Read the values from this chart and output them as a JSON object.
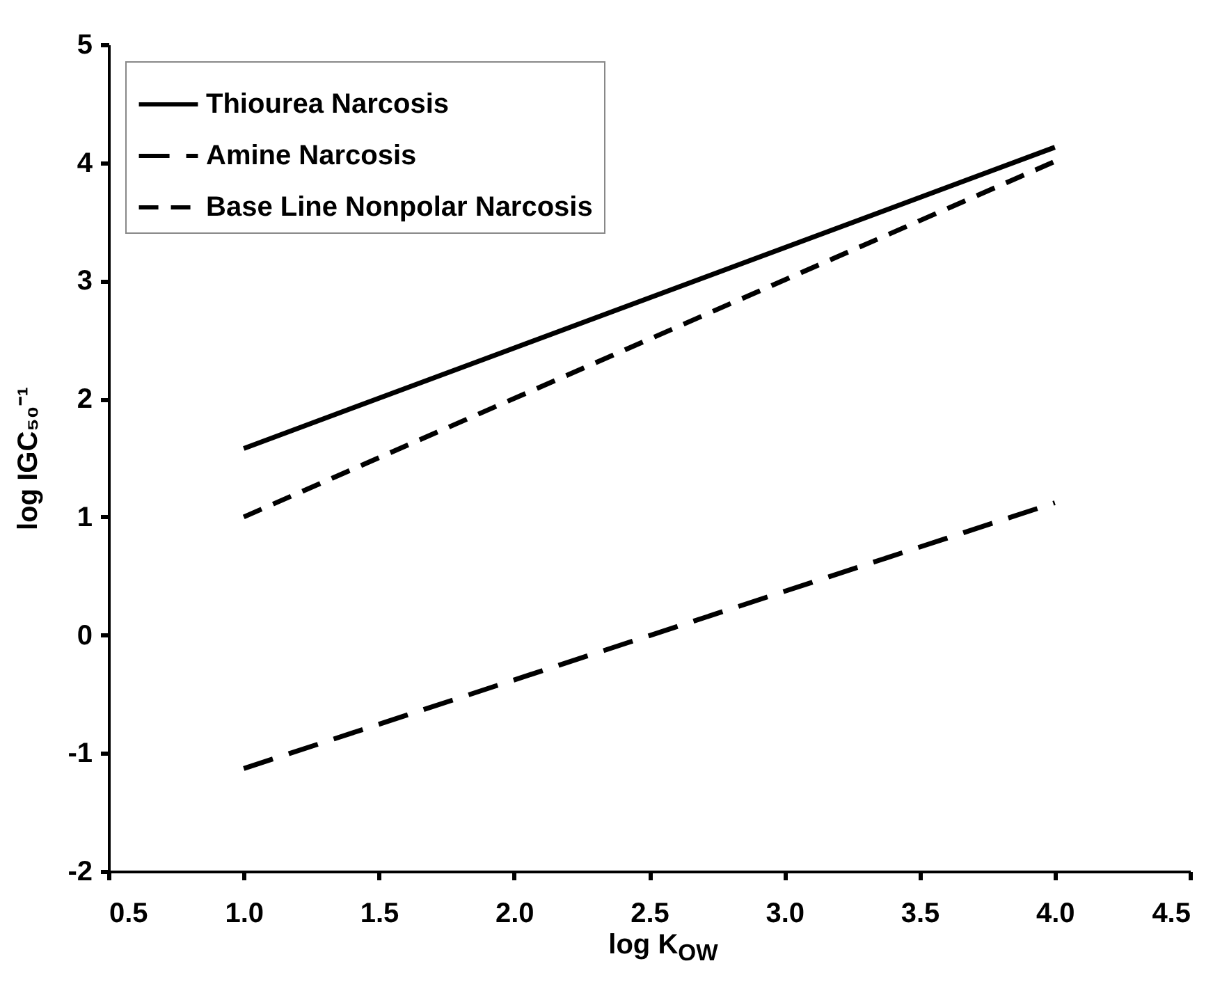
{
  "chart_data": {
    "type": "line",
    "xlabel": "log K$_{OW}$",
    "ylabel": "log IGC₅₀⁻¹",
    "x": [
      1.0,
      4.0
    ],
    "series": [
      {
        "name": "Thiourea Narcosis",
        "color": "#000000",
        "line_style": "solid",
        "values": [
          1.58,
          4.13
        ]
      },
      {
        "name": "Amine Narcosis",
        "color": "#000000",
        "line_style": "dashed",
        "values": [
          -1.13,
          1.12
        ]
      },
      {
        "name": "Base Line Nonpolar Narcosis",
        "color": "#000000",
        "line_style": "dashed",
        "values": [
          1.0,
          4.01
        ]
      }
    ],
    "xlim": [
      0.5,
      4.5
    ],
    "xticks": [
      {
        "value": 0.5,
        "label": "0.5"
      },
      {
        "value": 1,
        "label": "1.0"
      },
      {
        "value": 1.5,
        "label": "1.5"
      },
      {
        "value": 2,
        "label": "2.0"
      },
      {
        "value": 2.5,
        "label": "2.5"
      },
      {
        "value": 3,
        "label": "3.0"
      },
      {
        "value": 3.5,
        "label": "3.5"
      },
      {
        "value": 4,
        "label": "4.0"
      },
      {
        "value": 4.5,
        "label": "4.5"
      }
    ],
    "ylim": [
      -2,
      5
    ],
    "yticks": [
      -2,
      -1,
      0,
      1,
      2,
      3,
      4,
      5
    ],
    "legend": "top left",
    "grid": false
  }
}
